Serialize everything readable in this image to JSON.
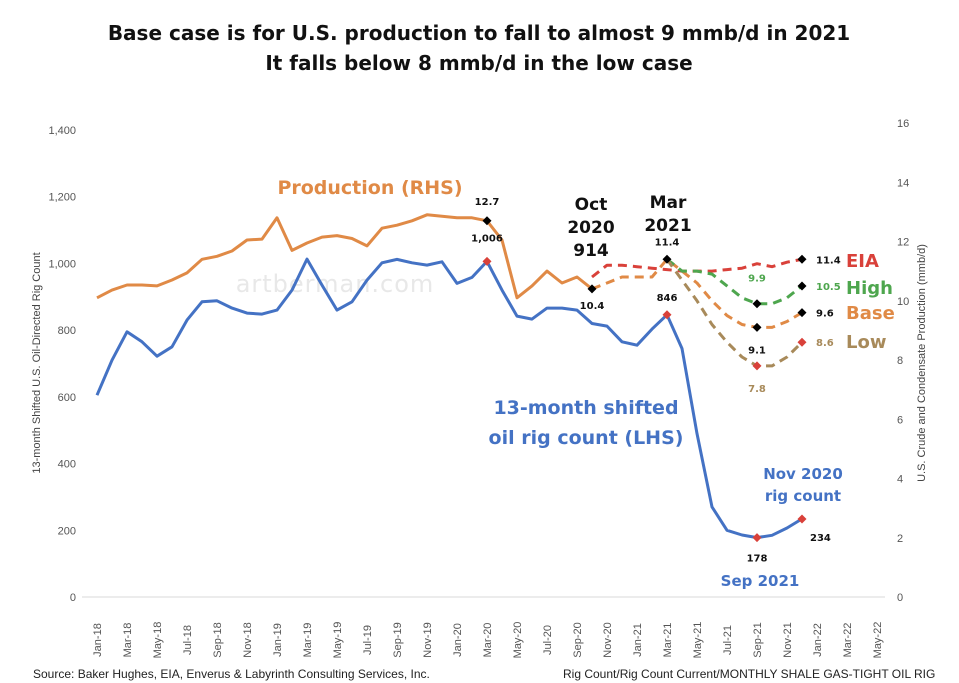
{
  "chart_data": {
    "type": "line",
    "title": [
      "Base case is for U.S. production to fall to almost 9 mmb/d in 2021",
      "It falls below 8 mmb/d in the low case"
    ],
    "ylabel_left": "13-month Shifted U.S. Oil-Directed Rig Count",
    "ylabel_right": "U.S. Crude and Condensate Production (mmb/d)",
    "ylim_left": [
      0,
      1400
    ],
    "ylim_right": [
      0,
      16
    ],
    "yticks_left": [
      "0",
      "200",
      "400",
      "600",
      "800",
      "1,000",
      "1,200",
      "1,400"
    ],
    "yticks_right": [
      "0",
      "2",
      "4",
      "6",
      "8",
      "10",
      "12",
      "14",
      "16"
    ],
    "xticks": [
      "Jan-18",
      "Mar-18",
      "May-18",
      "Jul-18",
      "Sep-18",
      "Nov-18",
      "Jan-19",
      "Mar-19",
      "May-19",
      "Jul-19",
      "Sep-19",
      "Nov-19",
      "Jan-20",
      "Mar-20",
      "May-20",
      "Jul-20",
      "Sep-20",
      "Nov-20",
      "Jan-21",
      "Mar-21",
      "May-21",
      "Jul-21",
      "Sep-21",
      "Nov-21",
      "Jan-22",
      "Mar-22",
      "May-22"
    ],
    "x_start": "Jan-18",
    "x_end": "May-22",
    "grid": false,
    "series": [
      {
        "axis": "left",
        "color": "#4472c4",
        "style": "solid",
        "start": "Jan-18",
        "values": [
          605,
          710,
          795,
          765,
          722,
          750,
          830,
          885,
          888,
          866,
          851,
          848,
          860,
          920,
          1013,
          935,
          860,
          885,
          950,
          1002,
          1012,
          1002,
          995,
          1005,
          940,
          958,
          1006,
          920,
          842,
          833,
          866,
          866,
          860,
          820,
          812,
          765,
          755,
          803,
          846,
          745,
          490,
          270,
          200,
          186,
          178,
          185,
          207,
          234
        ]
      },
      {
        "axis": "right",
        "color": "#e08a46",
        "style": "solid",
        "start": "Jan-18",
        "values": [
          10.1,
          10.36,
          10.53,
          10.53,
          10.5,
          10.7,
          10.94,
          11.4,
          11.5,
          11.68,
          12.05,
          12.08,
          12.8,
          11.7,
          11.95,
          12.15,
          12.2,
          12.1,
          11.85,
          12.45,
          12.55,
          12.7,
          12.9,
          12.85,
          12.8,
          12.8,
          12.7,
          12.05,
          10.1,
          10.5,
          11.0,
          10.6,
          10.8,
          10.4
        ]
      },
      {
        "name": "EIA",
        "axis": "right",
        "color": "#d9413a",
        "style": "dashed",
        "start": "Oct-20",
        "values": [
          10.8,
          11.2,
          11.2,
          11.15,
          11.1,
          11.05,
          11.0,
          11.0,
          11.0,
          11.05,
          11.1,
          11.25,
          11.15,
          11.3,
          11.4
        ]
      },
      {
        "name": "Base",
        "axis": "right",
        "color": "#e08a46",
        "style": "dashed",
        "start": "Oct-20",
        "values": [
          10.4,
          10.6,
          10.8,
          10.8,
          10.8,
          11.4,
          11.0,
          10.6,
          10.0,
          9.5,
          9.2,
          9.1,
          9.1,
          9.3,
          9.6
        ]
      },
      {
        "name": "High",
        "axis": "right",
        "color": "#4ea64e",
        "style": "dashed",
        "start": "Mar-21",
        "values": [
          11.4,
          11.0,
          11.0,
          10.9,
          10.5,
          10.1,
          9.9,
          9.9,
          10.1,
          10.5
        ]
      },
      {
        "name": "Low",
        "axis": "right",
        "color": "#a88a5a",
        "style": "dashed",
        "start": "Mar-21",
        "values": [
          11.4,
          10.7,
          10.0,
          9.2,
          8.6,
          8.1,
          7.8,
          7.8,
          8.1,
          8.6
        ]
      }
    ],
    "markers": [
      {
        "month": "Mar-20",
        "axis": "right",
        "value": 12.7,
        "color": "#000000",
        "label": "12.7"
      },
      {
        "month": "Mar-20",
        "axis": "left",
        "value": 1006,
        "color": "#d9413a",
        "label": "1,006"
      },
      {
        "month": "Oct-20",
        "axis": "right",
        "value": 10.4,
        "color": "#000000",
        "label": "10.4"
      },
      {
        "month": "Mar-21",
        "axis": "right",
        "value": 11.4,
        "color": "#000000",
        "label": "11.4"
      },
      {
        "month": "Mar-21",
        "axis": "left",
        "value": 846,
        "color": "#d9413a",
        "label": "846"
      },
      {
        "month": "Sep-21",
        "axis": "right",
        "value": 9.9,
        "color": "#000000",
        "label": "9.9"
      },
      {
        "month": "Sep-21",
        "axis": "right",
        "value": 9.1,
        "color": "#000000",
        "label": "9.1"
      },
      {
        "month": "Sep-21",
        "axis": "right",
        "value": 7.8,
        "color": "#d9413a",
        "label": "7.8"
      },
      {
        "month": "Dec-21",
        "axis": "right",
        "value": 11.4,
        "color": "#000000",
        "label": "11.4"
      },
      {
        "month": "Dec-21",
        "axis": "right",
        "value": 10.5,
        "color": "#000000",
        "label": "10.5"
      },
      {
        "month": "Dec-21",
        "axis": "right",
        "value": 9.6,
        "color": "#000000",
        "label": "9.6"
      },
      {
        "month": "Dec-21",
        "axis": "right",
        "value": 8.6,
        "color": "#d9413a",
        "label": "8.6"
      },
      {
        "month": "Sep-21",
        "axis": "left",
        "value": 178,
        "color": "#d9413a",
        "label": "178"
      },
      {
        "month": "Dec-21",
        "axis": "left",
        "value": 234,
        "color": "#d9413a",
        "label": "234"
      }
    ],
    "annotations": {
      "production": "Production (RHS)",
      "rig1": "13-month shifted",
      "rig2": "oil rig count (LHS)",
      "oct1": "Oct",
      "oct2": "2020",
      "oct3": "914",
      "mar1": "Mar",
      "mar2": "2021",
      "eia": "EIA",
      "high": "High",
      "base": "Base",
      "low": "Low",
      "nov1": "Nov 2020",
      "nov2": "rig count",
      "sep": "Sep 2021"
    },
    "watermark": "artberman.com"
  },
  "footer": {
    "source": "Source: Baker Hughes, EIA, Enverus & Labyrinth Consulting Services, Inc.",
    "file": "Rig Count/Rig Count Current/MONTHLY SHALE GAS-TIGHT OIL RIG"
  }
}
